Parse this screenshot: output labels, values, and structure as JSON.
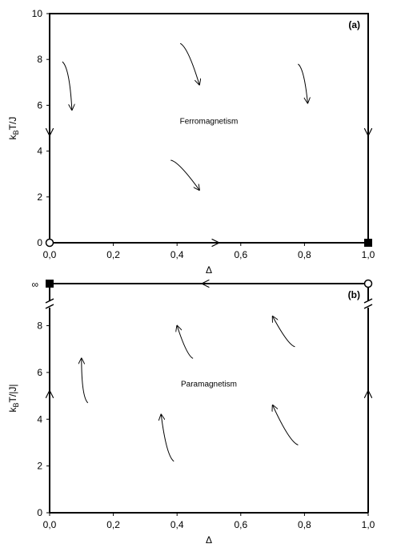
{
  "chart_data": [
    {
      "panel": "(a)",
      "type": "line",
      "region_label": "Ferromagnetism",
      "xlabel": "Δ",
      "ylabel": "k_B T/J",
      "xlim": [
        0,
        1
      ],
      "ylim": [
        0,
        10
      ],
      "xticks": [
        "0,0",
        "0,2",
        "0,4",
        "0,6",
        "0,8",
        "1,0"
      ],
      "yticks": [
        "0",
        "2",
        "4",
        "6",
        "8",
        "10"
      ],
      "grid": false,
      "fixed_points": [
        {
          "x": 0.0,
          "y": 0,
          "marker": "open-circle"
        },
        {
          "x": 1.0,
          "y": 0,
          "marker": "filled-square"
        }
      ],
      "flow_arrows": [
        {
          "from": [
            0.04,
            7.9
          ],
          "to": [
            0.07,
            5.8
          ]
        },
        {
          "from": [
            0.41,
            8.7
          ],
          "to": [
            0.47,
            6.9
          ]
        },
        {
          "from": [
            0.78,
            7.8
          ],
          "to": [
            0.81,
            6.1
          ]
        },
        {
          "from": [
            0.38,
            3.6
          ],
          "to": [
            0.47,
            2.3
          ]
        },
        {
          "from": [
            0.0,
            5.5
          ],
          "to": [
            0.0,
            4.7
          ]
        },
        {
          "from": [
            1.0,
            5.5
          ],
          "to": [
            1.0,
            4.7
          ]
        },
        {
          "from": [
            0.45,
            0.0
          ],
          "to": [
            0.53,
            0.0
          ]
        }
      ]
    },
    {
      "panel": "(b)",
      "type": "line",
      "region_label": "Paramagnetism",
      "xlabel": "Δ",
      "ylabel": "k_B T/|J|",
      "xlim": [
        0,
        1
      ],
      "ylim": [
        0,
        9.8
      ],
      "xticks": [
        "0,0",
        "0,2",
        "0,4",
        "0,6",
        "0,8",
        "1,0"
      ],
      "yticks": [
        "0",
        "2",
        "4",
        "6",
        "8",
        "∞"
      ],
      "grid": false,
      "fixed_points": [
        {
          "x": 0.0,
          "y": "∞",
          "marker": "filled-square"
        },
        {
          "x": 1.0,
          "y": "∞",
          "marker": "open-circle"
        }
      ],
      "flow_arrows": [
        {
          "from": [
            0.12,
            4.7
          ],
          "to": [
            0.1,
            6.6
          ]
        },
        {
          "from": [
            0.45,
            6.6
          ],
          "to": [
            0.4,
            8.0
          ]
        },
        {
          "from": [
            0.77,
            7.1
          ],
          "to": [
            0.7,
            8.4
          ]
        },
        {
          "from": [
            0.39,
            2.2
          ],
          "to": [
            0.35,
            4.2
          ]
        },
        {
          "from": [
            0.78,
            2.9
          ],
          "to": [
            0.7,
            4.6
          ]
        },
        {
          "from": [
            0.0,
            4.2
          ],
          "to": [
            0.0,
            5.2
          ]
        },
        {
          "from": [
            1.0,
            4.2
          ],
          "to": [
            1.0,
            5.2
          ]
        },
        {
          "from": [
            0.57,
            9.8
          ],
          "to": [
            0.48,
            9.8
          ]
        }
      ]
    }
  ]
}
